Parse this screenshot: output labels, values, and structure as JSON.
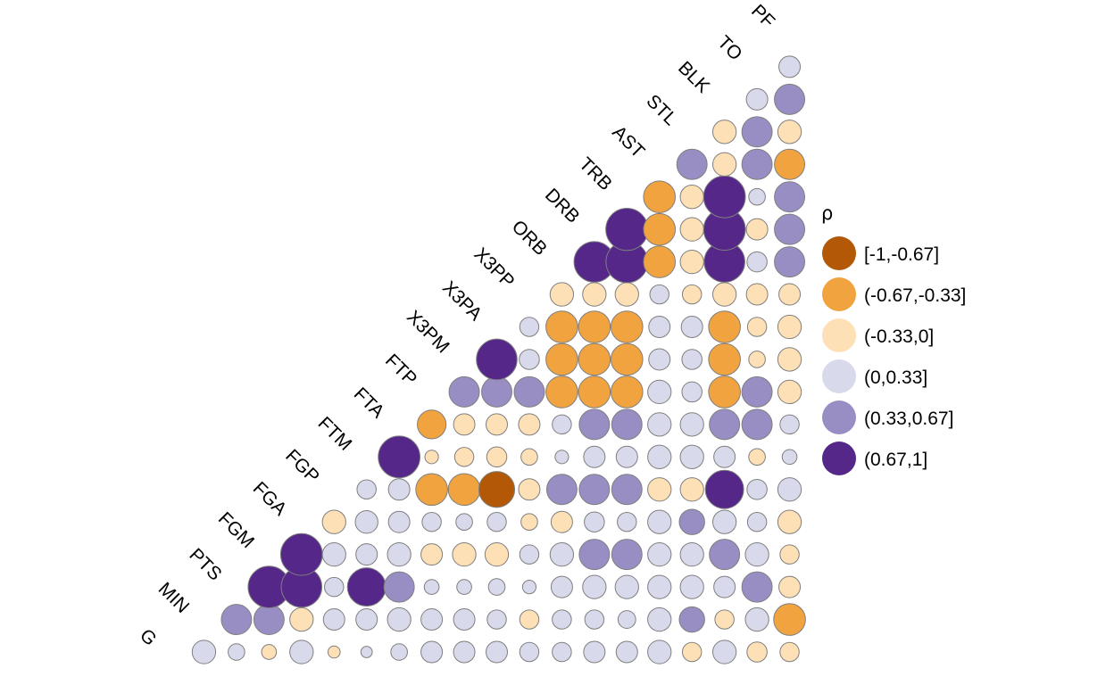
{
  "chart_data": {
    "type": "correlation-matrix",
    "title": "",
    "variables": [
      "G",
      "MIN",
      "PTS",
      "FGM",
      "FGA",
      "FGP",
      "FTM",
      "FTA",
      "FTP",
      "X3PM",
      "X3PA",
      "X3PP",
      "ORB",
      "DRB",
      "TRB",
      "AST",
      "STL",
      "BLK",
      "TO",
      "PF"
    ],
    "legend": {
      "title": "ρ",
      "position": "right",
      "bins": [
        {
          "label": "[-1,-0.67]",
          "color": "#B35806"
        },
        {
          "label": "(-0.67,-0.33]",
          "color": "#F1A340"
        },
        {
          "label": "(-0.33,0]",
          "color": "#FEE0B6"
        },
        {
          "label": "(0,0.33]",
          "color": "#D8DAEB"
        },
        {
          "label": "(0.33,0.67]",
          "color": "#998EC3"
        },
        {
          "label": "(0.67,1]",
          "color": "#542788"
        }
      ]
    },
    "correlations": [
      [
        "MIN",
        "G",
        0.3
      ],
      [
        "PTS",
        "G",
        0.15
      ],
      [
        "PTS",
        "MIN",
        0.5
      ],
      [
        "FGM",
        "G",
        -0.12
      ],
      [
        "FGM",
        "MIN",
        0.5
      ],
      [
        "FGM",
        "PTS",
        0.95
      ],
      [
        "FGA",
        "G",
        0.3
      ],
      [
        "FGA",
        "MIN",
        -0.3
      ],
      [
        "FGA",
        "PTS",
        0.9
      ],
      [
        "FGA",
        "FGM",
        0.95
      ],
      [
        "FGP",
        "G",
        -0.08
      ],
      [
        "FGP",
        "MIN",
        0.25
      ],
      [
        "FGP",
        "PTS",
        0.2
      ],
      [
        "FGP",
        "FGM",
        0.3
      ],
      [
        "FGP",
        "FGA",
        -0.3
      ],
      [
        "FTM",
        "G",
        0.07
      ],
      [
        "FTM",
        "MIN",
        0.25
      ],
      [
        "FTM",
        "PTS",
        0.8
      ],
      [
        "FTM",
        "FGM",
        0.25
      ],
      [
        "FTM",
        "FGA",
        0.28
      ],
      [
        "FTM",
        "FGP",
        0.2
      ],
      [
        "FTA",
        "G",
        0.15
      ],
      [
        "FTA",
        "MIN",
        0.3
      ],
      [
        "FTA",
        "PTS",
        0.5
      ],
      [
        "FTA",
        "FGM",
        0.3
      ],
      [
        "FTA",
        "FGA",
        0.25
      ],
      [
        "FTA",
        "FGP",
        0.25
      ],
      [
        "FTA",
        "FTM",
        0.95
      ],
      [
        "FTP",
        "G",
        0.25
      ],
      [
        "FTP",
        "MIN",
        0.25
      ],
      [
        "FTP",
        "PTS",
        0.12
      ],
      [
        "FTP",
        "FGM",
        -0.25
      ],
      [
        "FTP",
        "FGA",
        0.2
      ],
      [
        "FTP",
        "FGP",
        -0.55
      ],
      [
        "FTP",
        "FTM",
        -0.1
      ],
      [
        "FTP",
        "FTA",
        -0.45
      ],
      [
        "X3PM",
        "G",
        0.25
      ],
      [
        "X3PM",
        "MIN",
        0.25
      ],
      [
        "X3PM",
        "PTS",
        0.12
      ],
      [
        "X3PM",
        "FGM",
        -0.3
      ],
      [
        "X3PM",
        "FGA",
        0.15
      ],
      [
        "X3PM",
        "FGP",
        -0.55
      ],
      [
        "X3PM",
        "FTM",
        -0.2
      ],
      [
        "X3PM",
        "FTA",
        -0.25
      ],
      [
        "X3PM",
        "FTP",
        0.5
      ],
      [
        "X3PA",
        "G",
        0.25
      ],
      [
        "X3PA",
        "MIN",
        0.2
      ],
      [
        "X3PA",
        "PTS",
        0.15
      ],
      [
        "X3PA",
        "FGM",
        -0.3
      ],
      [
        "X3PA",
        "FGA",
        0.2
      ],
      [
        "X3PA",
        "FGP",
        -0.7
      ],
      [
        "X3PA",
        "FTM",
        -0.22
      ],
      [
        "X3PA",
        "FTA",
        -0.25
      ],
      [
        "X3PA",
        "FTP",
        0.5
      ],
      [
        "X3PA",
        "X3PM",
        0.9
      ],
      [
        "X3PP",
        "G",
        0.2
      ],
      [
        "X3PP",
        "MIN",
        -0.2
      ],
      [
        "X3PP",
        "PTS",
        0.1
      ],
      [
        "X3PP",
        "FGM",
        0.2
      ],
      [
        "X3PP",
        "FGA",
        -0.15
      ],
      [
        "X3PP",
        "FGP",
        -0.25
      ],
      [
        "X3PP",
        "FTM",
        -0.15
      ],
      [
        "X3PP",
        "FTA",
        -0.25
      ],
      [
        "X3PP",
        "FTP",
        0.5
      ],
      [
        "X3PP",
        "X3PM",
        0.22
      ],
      [
        "X3PP",
        "X3PA",
        0.2
      ],
      [
        "ORB",
        "G",
        0.2
      ],
      [
        "ORB",
        "MIN",
        0.2
      ],
      [
        "ORB",
        "PTS",
        0.25
      ],
      [
        "ORB",
        "FGM",
        0.3
      ],
      [
        "ORB",
        "FGA",
        -0.25
      ],
      [
        "ORB",
        "FGP",
        0.5
      ],
      [
        "ORB",
        "FTM",
        0.1
      ],
      [
        "ORB",
        "FTA",
        0.2
      ],
      [
        "ORB",
        "FTP",
        -0.55
      ],
      [
        "ORB",
        "X3PM",
        -0.55
      ],
      [
        "ORB",
        "X3PA",
        -0.55
      ],
      [
        "ORB",
        "X3PP",
        -0.3
      ],
      [
        "DRB",
        "G",
        0.25
      ],
      [
        "DRB",
        "MIN",
        0.2
      ],
      [
        "DRB",
        "PTS",
        0.3
      ],
      [
        "DRB",
        "FGM",
        0.5
      ],
      [
        "DRB",
        "FGA",
        0.22
      ],
      [
        "DRB",
        "FGP",
        0.5
      ],
      [
        "DRB",
        "FTM",
        0.25
      ],
      [
        "DRB",
        "FTA",
        0.5
      ],
      [
        "DRB",
        "FTP",
        -0.55
      ],
      [
        "DRB",
        "X3PM",
        -0.55
      ],
      [
        "DRB",
        "X3PA",
        -0.55
      ],
      [
        "DRB",
        "X3PP",
        -0.3
      ],
      [
        "DRB",
        "ORB",
        0.9
      ],
      [
        "TRB",
        "G",
        0.25
      ],
      [
        "TRB",
        "MIN",
        0.17
      ],
      [
        "TRB",
        "PTS",
        0.3
      ],
      [
        "TRB",
        "FGM",
        0.5
      ],
      [
        "TRB",
        "FGA",
        0.2
      ],
      [
        "TRB",
        "FGP",
        0.5
      ],
      [
        "TRB",
        "FTM",
        0.25
      ],
      [
        "TRB",
        "FTA",
        0.5
      ],
      [
        "TRB",
        "FTP",
        -0.55
      ],
      [
        "TRB",
        "X3PM",
        -0.55
      ],
      [
        "TRB",
        "X3PA",
        -0.55
      ],
      [
        "TRB",
        "X3PP",
        -0.3
      ],
      [
        "TRB",
        "ORB",
        0.95
      ],
      [
        "TRB",
        "DRB",
        0.97
      ],
      [
        "AST",
        "G",
        0.3
      ],
      [
        "AST",
        "MIN",
        0.3
      ],
      [
        "AST",
        "PTS",
        0.3
      ],
      [
        "AST",
        "FGM",
        0.3
      ],
      [
        "AST",
        "FGA",
        0.3
      ],
      [
        "AST",
        "FGP",
        -0.3
      ],
      [
        "AST",
        "FTM",
        0.3
      ],
      [
        "AST",
        "FTA",
        0.3
      ],
      [
        "AST",
        "FTP",
        0.3
      ],
      [
        "AST",
        "X3PM",
        0.25
      ],
      [
        "AST",
        "X3PA",
        0.25
      ],
      [
        "AST",
        "X3PP",
        0.2
      ],
      [
        "AST",
        "ORB",
        -0.55
      ],
      [
        "AST",
        "DRB",
        -0.55
      ],
      [
        "AST",
        "TRB",
        -0.55
      ],
      [
        "STL",
        "G",
        -0.2
      ],
      [
        "STL",
        "MIN",
        0.35
      ],
      [
        "STL",
        "PTS",
        0.3
      ],
      [
        "STL",
        "FGM",
        0.3
      ],
      [
        "STL",
        "FGA",
        0.35
      ],
      [
        "STL",
        "FGP",
        -0.3
      ],
      [
        "STL",
        "FTM",
        0.3
      ],
      [
        "STL",
        "FTA",
        0.3
      ],
      [
        "STL",
        "FTP",
        0.22
      ],
      [
        "STL",
        "X3PM",
        0.22
      ],
      [
        "STL",
        "X3PA",
        0.25
      ],
      [
        "STL",
        "X3PP",
        -0.2
      ],
      [
        "STL",
        "ORB",
        -0.3
      ],
      [
        "STL",
        "DRB",
        -0.3
      ],
      [
        "STL",
        "TRB",
        -0.3
      ],
      [
        "STL",
        "AST",
        0.5
      ],
      [
        "BLK",
        "G",
        0.3
      ],
      [
        "BLK",
        "MIN",
        -0.2
      ],
      [
        "BLK",
        "PTS",
        0.25
      ],
      [
        "BLK",
        "FGM",
        0.5
      ],
      [
        "BLK",
        "FGA",
        0.3
      ],
      [
        "BLK",
        "FGP",
        0.8
      ],
      [
        "BLK",
        "FTM",
        0.25
      ],
      [
        "BLK",
        "FTA",
        0.5
      ],
      [
        "BLK",
        "FTP",
        -0.55
      ],
      [
        "BLK",
        "X3PM",
        -0.55
      ],
      [
        "BLK",
        "X3PA",
        -0.55
      ],
      [
        "BLK",
        "X3PP",
        -0.3
      ],
      [
        "BLK",
        "ORB",
        0.9
      ],
      [
        "BLK",
        "DRB",
        0.95
      ],
      [
        "BLK",
        "TRB",
        0.95
      ],
      [
        "BLK",
        "AST",
        -0.3
      ],
      [
        "BLK",
        "STL",
        -0.3
      ],
      [
        "TO",
        "G",
        -0.22
      ],
      [
        "TO",
        "MIN",
        0.3
      ],
      [
        "TO",
        "PTS",
        0.5
      ],
      [
        "TO",
        "FGM",
        0.3
      ],
      [
        "TO",
        "FGA",
        0.2
      ],
      [
        "TO",
        "FGP",
        0.22
      ],
      [
        "TO",
        "FTM",
        -0.15
      ],
      [
        "TO",
        "FTA",
        0.5
      ],
      [
        "TO",
        "FTP",
        0.5
      ],
      [
        "TO",
        "X3PM",
        -0.15
      ],
      [
        "TO",
        "X3PA",
        -0.2
      ],
      [
        "TO",
        "X3PP",
        -0.25
      ],
      [
        "TO",
        "ORB",
        0.22
      ],
      [
        "TO",
        "DRB",
        -0.25
      ],
      [
        "TO",
        "TRB",
        0.15
      ],
      [
        "TO",
        "AST",
        0.5
      ],
      [
        "TO",
        "STL",
        0.5
      ],
      [
        "TO",
        "BLK",
        0.25
      ],
      [
        "PF",
        "G",
        -0.2
      ],
      [
        "PF",
        "MIN",
        -0.55
      ],
      [
        "PF",
        "PTS",
        -0.25
      ],
      [
        "PF",
        "FGM",
        -0.2
      ],
      [
        "PF",
        "FGA",
        -0.3
      ],
      [
        "PF",
        "FGP",
        0.3
      ],
      [
        "PF",
        "FTM",
        0.12
      ],
      [
        "PF",
        "FTA",
        0.2
      ],
      [
        "PF",
        "FTP",
        -0.3
      ],
      [
        "PF",
        "X3PM",
        -0.3
      ],
      [
        "PF",
        "X3PA",
        -0.3
      ],
      [
        "PF",
        "X3PP",
        -0.25
      ],
      [
        "PF",
        "ORB",
        0.5
      ],
      [
        "PF",
        "DRB",
        0.5
      ],
      [
        "PF",
        "TRB",
        0.5
      ],
      [
        "PF",
        "AST",
        -0.5
      ],
      [
        "PF",
        "STL",
        -0.3
      ],
      [
        "PF",
        "BLK",
        0.5
      ],
      [
        "PF",
        "TO",
        0.25
      ]
    ]
  }
}
